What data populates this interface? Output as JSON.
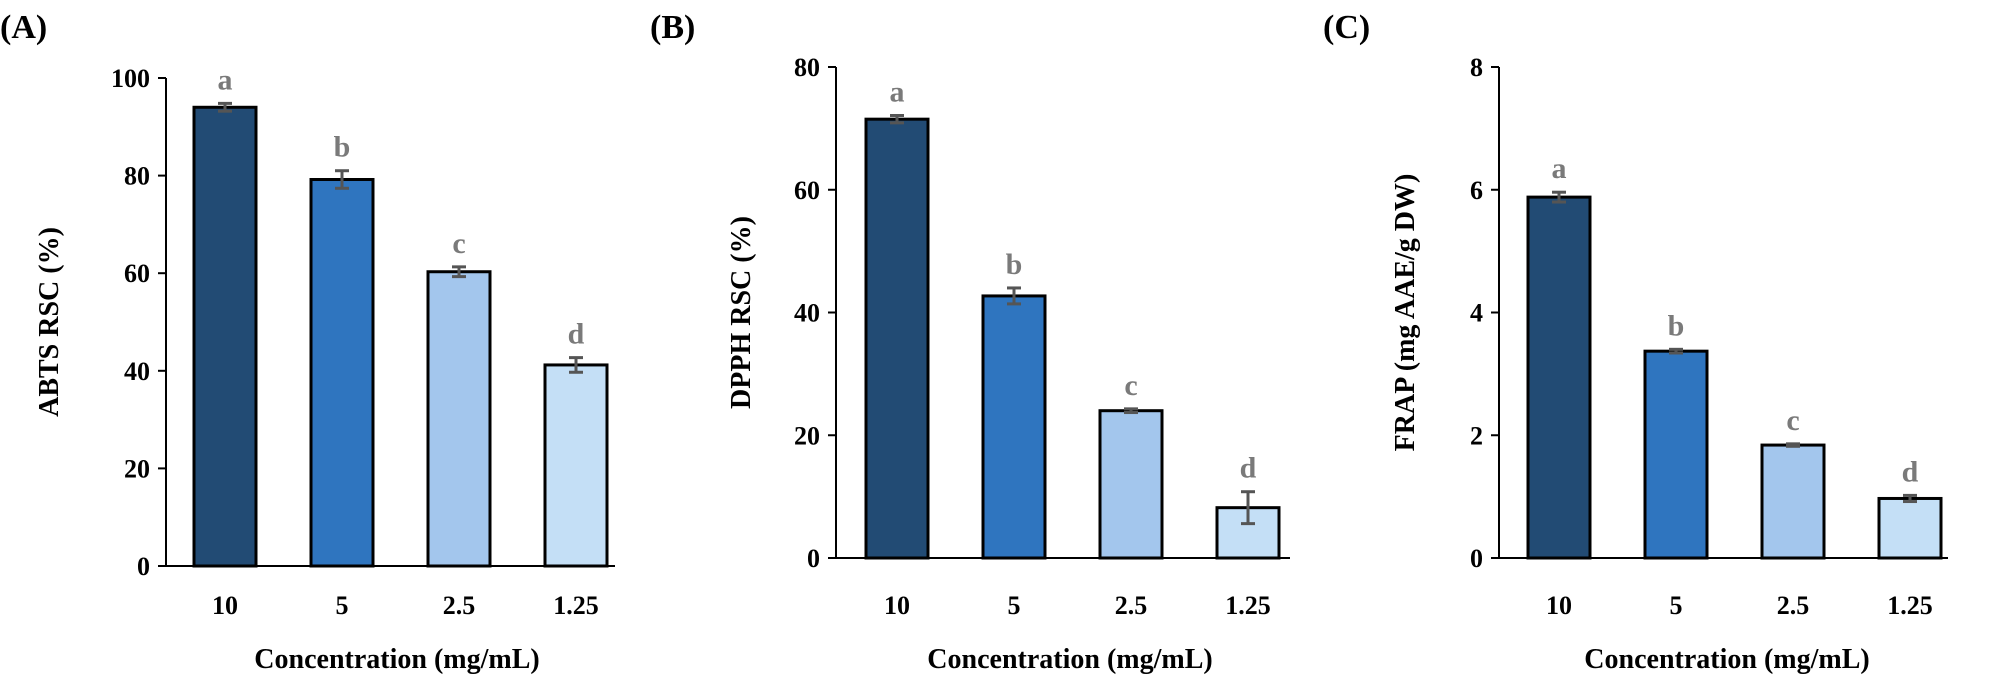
{
  "colors": {
    "bar_colors": [
      "#224b74",
      "#2f75bf",
      "#a3c6ed",
      "#c4dff6"
    ],
    "error_color": "#555555",
    "letter_color": "#7a7a7a"
  },
  "chart_data": [
    {
      "type": "bar",
      "panel_label": "(A)",
      "categories": [
        "10",
        "5",
        "2.5",
        "1.25"
      ],
      "values": [
        94.0,
        79.2,
        60.3,
        41.2
      ],
      "errors": [
        0.8,
        1.8,
        1.0,
        1.5
      ],
      "significance": [
        "a",
        "b",
        "c",
        "d"
      ],
      "ylabel": "ABTS RSC (%)",
      "xlabel": "Concentration (mg/mL)",
      "ylim": [
        0,
        100
      ],
      "yticks": [
        0,
        20,
        40,
        60,
        80,
        100
      ],
      "ytick_labels": [
        "0",
        "20",
        "40",
        "60",
        "80",
        "100"
      ]
    },
    {
      "type": "bar",
      "panel_label": "(B)",
      "categories": [
        "10",
        "5",
        "2.5",
        "1.25"
      ],
      "values": [
        71.5,
        42.7,
        24.0,
        8.2
      ],
      "errors": [
        0.6,
        1.3,
        0.3,
        2.6
      ],
      "significance": [
        "a",
        "b",
        "c",
        "d"
      ],
      "ylabel": "DPPH RSC (%)",
      "xlabel": "Concentration (mg/mL)",
      "ylim": [
        0,
        80
      ],
      "yticks": [
        0,
        20,
        40,
        60,
        80
      ],
      "ytick_labels": [
        "0",
        "20",
        "40",
        "60",
        "80"
      ]
    },
    {
      "type": "bar",
      "panel_label": "(C)",
      "categories": [
        "10",
        "5",
        "2.5",
        "1.25"
      ],
      "values": [
        5.88,
        3.37,
        1.84,
        0.97
      ],
      "errors": [
        0.08,
        0.03,
        0.02,
        0.05
      ],
      "significance": [
        "a",
        "b",
        "c",
        "d"
      ],
      "ylabel": "FRAP (mg AAE/g DW)",
      "xlabel": "Concentration (mg/mL)",
      "ylim": [
        0,
        8
      ],
      "yticks": [
        0,
        2,
        4,
        6,
        8
      ],
      "ytick_labels": [
        "0",
        "2",
        "4",
        "6",
        "8"
      ]
    }
  ]
}
